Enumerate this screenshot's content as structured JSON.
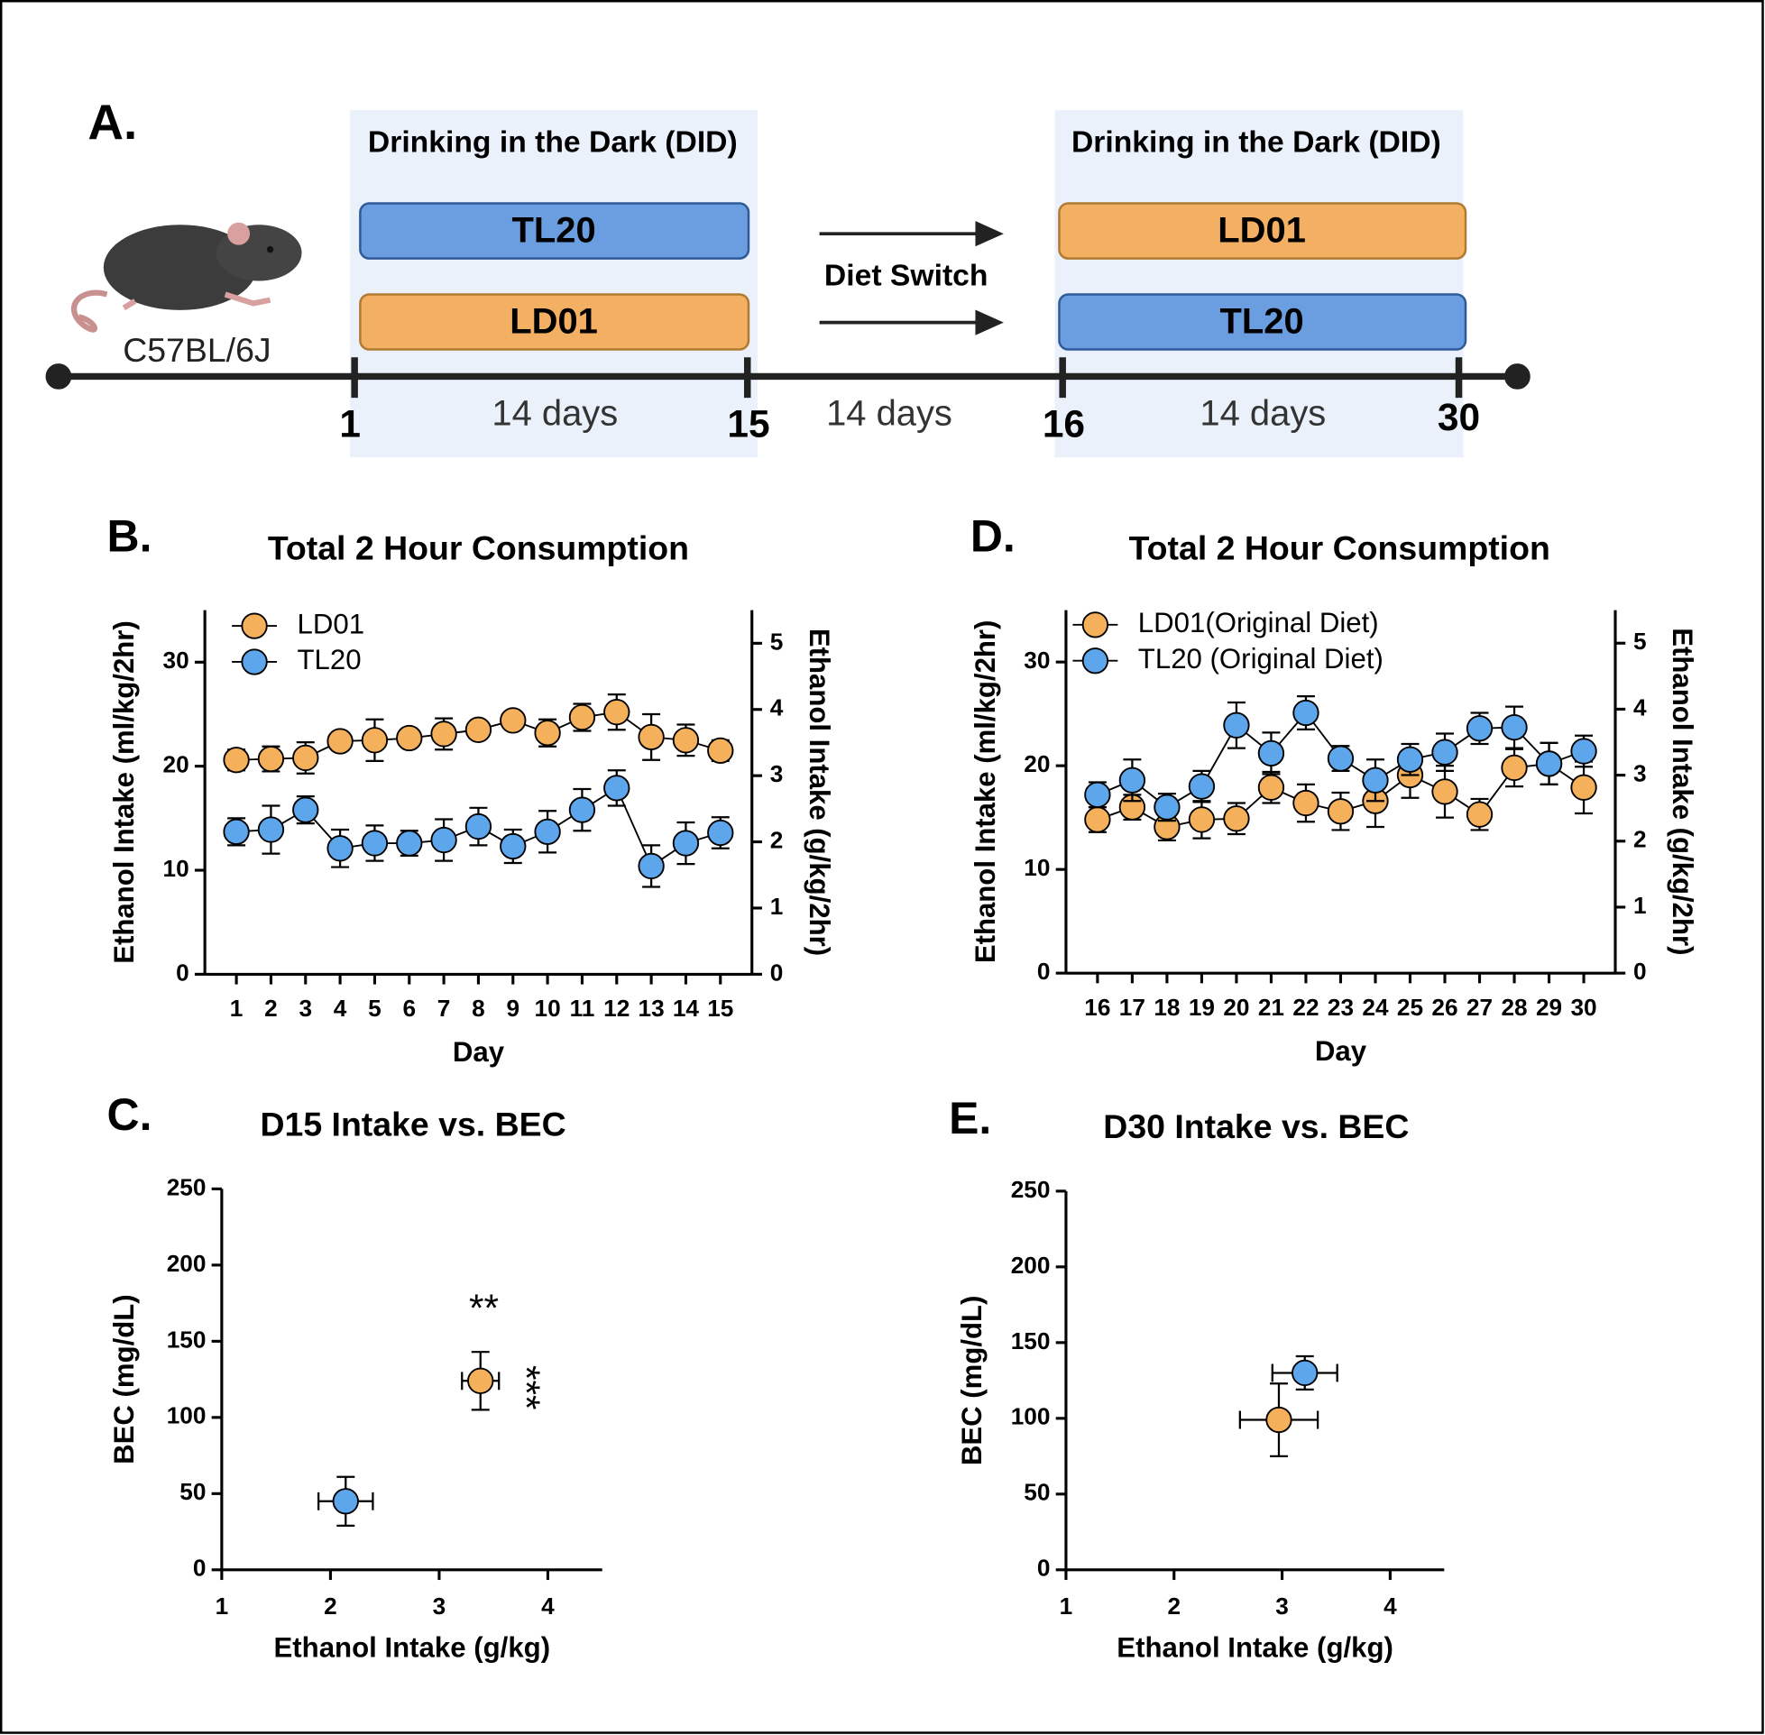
{
  "diagram": {
    "panel_label": "A.",
    "strain": "C57BL/6J",
    "phases": [
      {
        "title": "Drinking in the Dark (DID)",
        "top": "TL20",
        "bottom": "LD01"
      },
      {
        "title": "Drinking in the Dark (DID)",
        "top": "LD01",
        "bottom": "TL20"
      }
    ],
    "switch_label": "Diet Switch",
    "days": [
      "1",
      "15",
      "16",
      "30"
    ],
    "durations": [
      "14 days",
      "14 days",
      "14 days"
    ]
  },
  "chart_data": [
    {
      "type": "line",
      "label": "B.",
      "title": "Total 2 Hour Consumption",
      "xlabel": "Day",
      "ylabel": "Ethanol Intake (ml/kg/2hr)",
      "y2label": "Ethanol Intake (g/kg/2hr)",
      "categories": [
        "1",
        "2",
        "3",
        "4",
        "5",
        "6",
        "7",
        "8",
        "9",
        "10",
        "11",
        "12",
        "13",
        "14",
        "15"
      ],
      "ylim": [
        0,
        35
      ],
      "yticks": [
        0,
        10,
        20,
        30
      ],
      "y2lim": [
        0,
        5.5
      ],
      "y2ticks": [
        0,
        1,
        2,
        3,
        4,
        5
      ],
      "series": [
        {
          "name": "LD01",
          "color": "#f5b05c",
          "values": [
            20.6,
            20.7,
            20.8,
            22.4,
            22.5,
            22.7,
            23.1,
            23.5,
            24.4,
            23.2,
            24.7,
            25.2,
            22.8,
            22.5,
            21.5
          ],
          "errors": [
            1.0,
            1.2,
            1.5,
            0.8,
            2.0,
            0.8,
            1.5,
            0.8,
            0.8,
            1.3,
            1.3,
            1.7,
            2.2,
            1.5,
            1.0
          ]
        },
        {
          "name": "TL20",
          "color": "#5da6ec",
          "values": [
            13.7,
            13.9,
            15.8,
            12.1,
            12.6,
            12.6,
            12.9,
            14.2,
            12.3,
            13.7,
            15.8,
            17.9,
            10.4,
            12.6,
            13.6
          ],
          "errors": [
            1.3,
            2.3,
            1.3,
            1.8,
            1.7,
            1.2,
            2.0,
            1.8,
            1.6,
            2.0,
            2.0,
            1.7,
            2.0,
            2.0,
            1.5
          ]
        }
      ]
    },
    {
      "type": "line",
      "label": "D.",
      "title": "Total 2 Hour Consumption",
      "xlabel": "Day",
      "ylabel": "Ethanol Intake (ml/kg/2hr)",
      "y2label": "Ethanol Intake (g/kg/2hr)",
      "categories": [
        "16",
        "17",
        "18",
        "19",
        "20",
        "21",
        "22",
        "23",
        "24",
        "25",
        "26",
        "27",
        "28",
        "29",
        "30"
      ],
      "ylim": [
        0,
        35
      ],
      "yticks": [
        0,
        10,
        20,
        30
      ],
      "y2lim": [
        0,
        5.5
      ],
      "y2ticks": [
        0,
        1,
        2,
        3,
        4,
        5
      ],
      "series": [
        {
          "name": "LD01(Original Diet)",
          "color": "#f5b05c",
          "values": [
            14.8,
            16.0,
            14.1,
            14.8,
            14.9,
            17.9,
            16.4,
            15.6,
            16.6,
            19.1,
            17.5,
            15.3,
            19.8,
            20.2,
            17.9
          ],
          "errors": [
            1.2,
            1.2,
            1.3,
            1.8,
            1.5,
            1.5,
            1.8,
            1.8,
            2.5,
            2.2,
            2.5,
            1.5,
            1.8,
            2.0,
            2.5
          ]
        },
        {
          "name": "TL20 (Original Diet)",
          "color": "#5da6ec",
          "values": [
            17.2,
            18.6,
            16.0,
            18.0,
            23.9,
            21.2,
            25.1,
            20.7,
            18.6,
            20.6,
            21.3,
            23.6,
            23.7,
            20.2,
            21.4
          ],
          "errors": [
            1.2,
            2.0,
            1.3,
            1.5,
            2.2,
            2.0,
            1.6,
            1.2,
            2.0,
            1.5,
            1.8,
            1.5,
            2.0,
            2.0,
            1.5
          ]
        }
      ]
    },
    {
      "type": "scatter",
      "label": "C.",
      "title": "D15 Intake vs. BEC",
      "xlabel": "Ethanol Intake (g/kg)",
      "ylabel": "BEC (mg/dL)",
      "xlim": [
        1,
        4.5
      ],
      "xticks": [
        1,
        2,
        3,
        4
      ],
      "ylim": [
        0,
        250
      ],
      "yticks": [
        0,
        50,
        100,
        150,
        200,
        250
      ],
      "annotations": [
        "**",
        "***"
      ],
      "series": [
        {
          "color": "#f5b05c",
          "x": [
            3.38
          ],
          "values": [
            124
          ],
          "xerr": [
            0.17
          ],
          "yerr": [
            19
          ]
        },
        {
          "color": "#5da6ec",
          "x": [
            2.14
          ],
          "values": [
            45
          ],
          "xerr": [
            0.25
          ],
          "yerr": [
            16
          ]
        }
      ]
    },
    {
      "type": "scatter",
      "label": "E.",
      "title": "D30 Intake vs. BEC",
      "xlabel": "Ethanol Intake (g/kg)",
      "ylabel": "BEC (mg/dL)",
      "xlim": [
        1,
        4.5
      ],
      "xticks": [
        1,
        2,
        3,
        4
      ],
      "ylim": [
        0,
        250
      ],
      "yticks": [
        0,
        50,
        100,
        150,
        200,
        250
      ],
      "series": [
        {
          "color": "#f5b05c",
          "x": [
            2.97
          ],
          "values": [
            99
          ],
          "xerr": [
            0.36
          ],
          "yerr": [
            24
          ]
        },
        {
          "color": "#5da6ec",
          "x": [
            3.21
          ],
          "values": [
            130
          ],
          "xerr": [
            0.3
          ],
          "yerr": [
            11
          ]
        }
      ]
    }
  ]
}
